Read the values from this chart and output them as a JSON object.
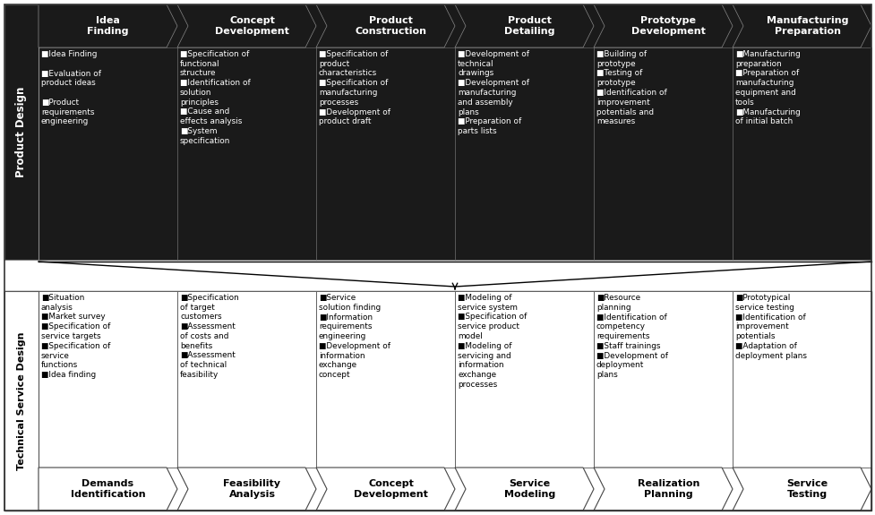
{
  "top_headers": [
    "Idea\nFinding",
    "Concept\nDevelopment",
    "Product\nConstruction",
    "Product\nDetailing",
    "Prototype\nDevelopment",
    "Manufacturing\nPreparation"
  ],
  "top_bullets": [
    "■Idea Finding\n\n■Evaluation of\nproduct ideas\n\n■Product\nrequirements\nengineering",
    "■Specification of\nfunctional\nstructure\n■Identification of\nsolution\nprinciples\n■Cause and\neffects analysis\n■System\nspecification",
    "■Specification of\nproduct\ncharacteristics\n■Specification of\nmanufacturing\nprocesses\n■Development of\nproduct draft",
    "■Development of\ntechnical\ndrawings\n■Development of\nmanufacturing\nand assembly\nplans\n■Preparation of\nparts lists",
    "■Building of\nprototype\n■Testing of\nprototype\n■Identification of\nimprovement\npotentials and\nmeasures",
    "■Manufacturing\npreparation\n■Preparation of\nmanufacturing\nequipment and\ntools\n■Manufacturing\nof initial batch"
  ],
  "bottom_bullets": [
    "■Situation\nanalysis\n■Market survey\n■Specification of\nservice targets\n■Specification of\nservice\nfunctions\n■Idea finding",
    "■Specification\nof target\ncustomers\n■Assessment\nof costs and\nbenefits\n■Assessment\nof technical\nfeasibility",
    "■Service\nsolution finding\n■Information\nrequirements\nengineering\n■Development of\ninformation\nexchange\nconcept",
    "■Modeling of\nservice system\n■Specification of\nservice product\nmodel\n■Modeling of\nservicing and\ninformation\nexchange\nprocesses",
    "■Resource\nplanning\n■Identification of\ncompetency\nrequirements\n■Staff trainings\n■Development of\ndeployment\nplans",
    "■Prototypical\nservice testing\n■Identification of\nimprovement\npotentials\n■Adaptation of\ndeployment plans"
  ],
  "bottom_headers": [
    "Demands\nIdentification",
    "Feasibility\nAnalysis",
    "Concept\nDevelopment",
    "Service\nModeling",
    "Realization\nPlanning",
    "Service\nTesting"
  ],
  "top_label": "Product Design",
  "bottom_label": "Technical Service Design",
  "fig_bg": "#ffffff",
  "header_bg": "#1a1a1a",
  "header_fg": "#ffffff",
  "body_bg": "#1a1a1a",
  "body_fg": "#ffffff",
  "bottom_box_bg": "#ffffff",
  "bottom_box_fg": "#000000",
  "bottom_header_bg": "#ffffff",
  "bottom_header_fg": "#000000",
  "side_label_bg_top": "#1a1a1a",
  "side_label_fg_top": "#ffffff",
  "side_label_bg_bot": "#ffffff",
  "side_label_fg_bot": "#000000"
}
